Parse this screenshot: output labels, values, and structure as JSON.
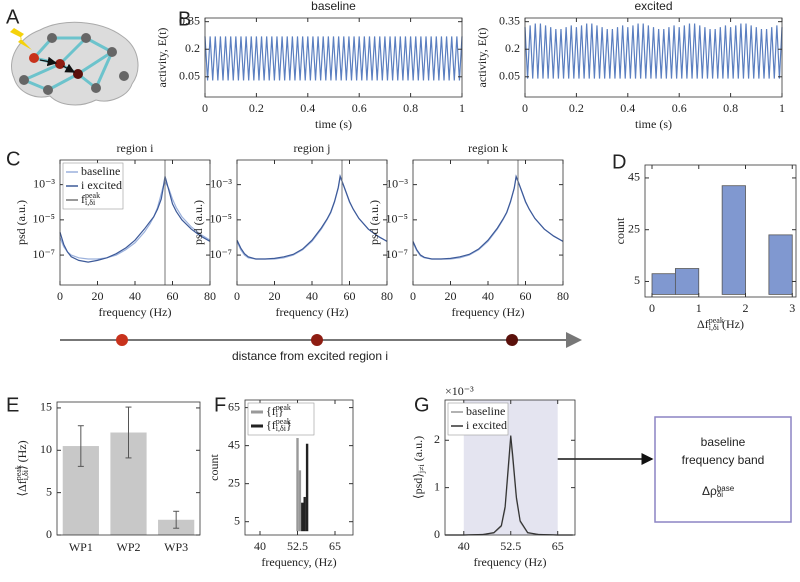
{
  "panel_labels": [
    "A",
    "B",
    "C",
    "D",
    "E",
    "F",
    "G"
  ],
  "chart_data": [
    {
      "type": "line",
      "title": "baseline",
      "xlabel": "time (s)",
      "ylabel": "activity, E(t)",
      "color": "#5b7fc0",
      "xlim": [
        0,
        1
      ],
      "ylim": [
        -0.06,
        0.37
      ],
      "xticks": [
        0,
        0.2,
        0.4,
        0.6,
        0.8,
        1
      ],
      "yticks": [
        0.05,
        0.2,
        0.35
      ],
      "x": [
        0,
        0.01,
        0.02,
        0.03,
        0.04,
        0.05,
        0.06,
        0.07,
        0.08,
        0.09,
        0.1,
        0.11,
        0.12,
        0.13,
        0.14,
        0.15,
        0.16,
        0.17,
        0.18,
        0.19,
        0.2,
        0.21,
        0.22,
        0.23,
        0.24,
        0.25,
        0.26,
        0.27,
        0.28,
        0.29,
        0.3,
        0.31,
        0.32,
        0.33,
        0.34,
        0.35,
        0.36,
        0.37,
        0.38,
        0.39,
        0.4,
        0.41,
        0.42,
        0.43,
        0.44,
        0.45,
        0.46,
        0.47,
        0.48,
        0.49,
        0.5,
        0.51,
        0.52,
        0.53,
        0.54,
        0.55,
        0.56,
        0.57,
        0.58,
        0.59,
        0.6,
        0.61,
        0.62,
        0.63,
        0.64,
        0.65,
        0.66,
        0.67,
        0.68,
        0.69,
        0.7,
        0.71,
        0.72,
        0.73,
        0.74,
        0.75,
        0.76,
        0.77,
        0.78,
        0.79,
        0.8,
        0.81,
        0.82,
        0.83,
        0.84,
        0.85,
        0.86,
        0.87,
        0.88,
        0.89,
        0.9,
        0.91,
        0.92,
        0.93,
        0.94,
        0.95,
        0.96,
        0.97,
        0.98,
        0.99,
        1
      ],
      "values": [
        0.27,
        0.03,
        0.27,
        0.03,
        0.27,
        0.03,
        0.27,
        0.03,
        0.27,
        0.03,
        0.27,
        0.03,
        0.27,
        0.03,
        0.27,
        0.03,
        0.27,
        0.03,
        0.27,
        0.03,
        0.27,
        0.03,
        0.27,
        0.03,
        0.27,
        0.03,
        0.27,
        0.03,
        0.27,
        0.03,
        0.27,
        0.03,
        0.27,
        0.03,
        0.27,
        0.03,
        0.27,
        0.03,
        0.27,
        0.03,
        0.27,
        0.03,
        0.27,
        0.03,
        0.27,
        0.03,
        0.27,
        0.03,
        0.27,
        0.03,
        0.27,
        0.03,
        0.27,
        0.03,
        0.27,
        0.03,
        0.27,
        0.03,
        0.27,
        0.03,
        0.27,
        0.03,
        0.27,
        0.03,
        0.27,
        0.03,
        0.27,
        0.03,
        0.27,
        0.03,
        0.27,
        0.03,
        0.27,
        0.03,
        0.27,
        0.03,
        0.27,
        0.03,
        0.27,
        0.03,
        0.27,
        0.03,
        0.27,
        0.03,
        0.27,
        0.03,
        0.27,
        0.03,
        0.27,
        0.03,
        0.27,
        0.03,
        0.27,
        0.03,
        0.27,
        0.03,
        0.27,
        0.03,
        0.27,
        0.03,
        0.27
      ]
    },
    {
      "type": "line",
      "title": "excited",
      "xlabel": "time (s)",
      "ylabel": "activity, E(t)",
      "color": "#5b7fc0",
      "xlim": [
        0,
        1
      ],
      "ylim": [
        -0.06,
        0.37
      ],
      "xticks": [
        0,
        0.2,
        0.4,
        0.6,
        0.8,
        1
      ],
      "yticks": [
        0.05,
        0.2,
        0.35
      ],
      "x": [
        0,
        0.01,
        0.02,
        0.03,
        0.04,
        0.05,
        0.06,
        0.07,
        0.08,
        0.09,
        0.1,
        0.11,
        0.12,
        0.13,
        0.14,
        0.15,
        0.16,
        0.17,
        0.18,
        0.19,
        0.2,
        0.21,
        0.22,
        0.23,
        0.24,
        0.25,
        0.26,
        0.27,
        0.28,
        0.29,
        0.3,
        0.31,
        0.32,
        0.33,
        0.34,
        0.35,
        0.36,
        0.37,
        0.38,
        0.39,
        0.4,
        0.41,
        0.42,
        0.43,
        0.44,
        0.45,
        0.46,
        0.47,
        0.48,
        0.49,
        0.5,
        0.51,
        0.52,
        0.53,
        0.54,
        0.55,
        0.56,
        0.57,
        0.58,
        0.59,
        0.6,
        0.61,
        0.62,
        0.63,
        0.64,
        0.65,
        0.66,
        0.67,
        0.68,
        0.69,
        0.7,
        0.71,
        0.72,
        0.73,
        0.74,
        0.75,
        0.76,
        0.77,
        0.78,
        0.79,
        0.8,
        0.81,
        0.82,
        0.83,
        0.84,
        0.85,
        0.86,
        0.87,
        0.88,
        0.89,
        0.9,
        0.91,
        0.92,
        0.93,
        0.94,
        0.95,
        0.96,
        0.97,
        0.98,
        0.99,
        1
      ],
      "values": [
        0.32,
        0.04,
        0.33,
        0.04,
        0.34,
        0.04,
        0.34,
        0.04,
        0.33,
        0.04,
        0.32,
        0.04,
        0.31,
        0.04,
        0.31,
        0.04,
        0.32,
        0.04,
        0.33,
        0.04,
        0.32,
        0.04,
        0.33,
        0.04,
        0.34,
        0.04,
        0.34,
        0.04,
        0.33,
        0.04,
        0.32,
        0.04,
        0.31,
        0.04,
        0.31,
        0.04,
        0.32,
        0.04,
        0.33,
        0.04,
        0.32,
        0.04,
        0.33,
        0.04,
        0.34,
        0.04,
        0.34,
        0.04,
        0.33,
        0.04,
        0.32,
        0.04,
        0.31,
        0.04,
        0.31,
        0.04,
        0.32,
        0.04,
        0.33,
        0.04,
        0.32,
        0.04,
        0.33,
        0.04,
        0.34,
        0.04,
        0.34,
        0.04,
        0.33,
        0.04,
        0.32,
        0.04,
        0.31,
        0.04,
        0.31,
        0.04,
        0.32,
        0.04,
        0.33,
        0.04,
        0.32,
        0.04,
        0.33,
        0.04,
        0.34,
        0.04,
        0.34,
        0.04,
        0.33,
        0.04,
        0.32,
        0.04,
        0.31,
        0.04,
        0.31,
        0.04,
        0.32,
        0.04,
        0.33,
        0.04,
        0.32
      ]
    },
    {
      "type": "line",
      "title": "region i",
      "xlabel": "frequency (Hz)",
      "ylabel": "psd (a.u.)",
      "log_y": true,
      "xlim": [
        0,
        80
      ],
      "ylim": [
        2e-09,
        0.025
      ],
      "xticks": [
        0,
        20,
        40,
        60,
        80
      ],
      "yticks": [
        {
          "value": 1e-07,
          "label": "10⁻⁷"
        },
        {
          "value": 1e-05,
          "label": "10⁻⁵"
        },
        {
          "value": 0.001,
          "label": "10⁻³"
        }
      ],
      "x": [
        0,
        2,
        4,
        6,
        10,
        15,
        20,
        25,
        30,
        35,
        40,
        45,
        48,
        50,
        52,
        54,
        55,
        56,
        58,
        60,
        62,
        65,
        70,
        75,
        80
      ],
      "series": [
        {
          "name": "baseline",
          "color": "#9ab0dc",
          "values": [
            1e-06,
            3e-07,
            1.5e-07,
            1e-07,
            7e-08,
            6e-08,
            6e-08,
            7e-08,
            1e-07,
            2e-07,
            5e-07,
            2e-06,
            6e-06,
            1.5e-05,
            5e-05,
            0.0003,
            0.0008,
            0.0015,
            0.0006,
            0.00015,
            5e-05,
            1.5e-05,
            4e-06,
            1.5e-06,
            7e-07
          ]
        },
        {
          "name": "i excited",
          "color": "#3d5a99",
          "values": [
            2e-06,
            4e-07,
            1.5e-07,
            8e-08,
            5e-08,
            4e-08,
            5e-08,
            7e-08,
            1.2e-07,
            2.5e-07,
            7e-07,
            3e-06,
            8e-06,
            1.5e-05,
            4e-05,
            0.00015,
            0.0006,
            0.003,
            0.0005,
            8e-05,
            3e-05,
            1e-05,
            3e-06,
            1.2e-06,
            6e-07
          ]
        }
      ],
      "vline": {
        "x": 56,
        "color": "#777",
        "name": {
          "parts": [
            {
              "t": "f"
            },
            {
              "t": "peak",
              "pos": "sup"
            },
            {
              "t": "i,δi",
              "pos": "sub"
            }
          ]
        }
      }
    },
    {
      "type": "line",
      "title": "region j",
      "xlabel": "frequency (Hz)",
      "ylabel": "psd (a.u.)",
      "log_y": true,
      "xlim": [
        0,
        80
      ],
      "ylim": [
        2e-09,
        0.025
      ],
      "xticks": [
        0,
        20,
        40,
        60,
        80
      ],
      "yticks": [
        {
          "value": 1e-07,
          "label": "10⁻⁷"
        },
        {
          "value": 1e-05,
          "label": "10⁻⁵"
        },
        {
          "value": 0.001,
          "label": "10⁻³"
        }
      ],
      "x": [
        0,
        2,
        4,
        6,
        10,
        15,
        20,
        25,
        30,
        35,
        40,
        45,
        48,
        50,
        52,
        54,
        55,
        56,
        58,
        60,
        62,
        65,
        70,
        75,
        80
      ],
      "series": [
        {
          "color": "#9ab0dc",
          "values": [
            6e-07,
            2e-07,
            1e-07,
            7e-08,
            6e-08,
            6e-08,
            6e-08,
            7e-08,
            1e-07,
            2e-07,
            6e-07,
            3e-06,
            1e-05,
            2.5e-05,
            0.0001,
            0.0006,
            0.0025,
            0.0015,
            0.0004,
            0.0001,
            4e-05,
            1.2e-05,
            3e-06,
            1.2e-06,
            6e-07
          ]
        },
        {
          "color": "#3d5a99",
          "values": [
            7e-07,
            2.5e-07,
            1.2e-07,
            8e-08,
            6e-08,
            6e-08,
            6.5e-08,
            8e-08,
            1.1e-07,
            2.2e-07,
            7e-07,
            3.5e-06,
            1.1e-05,
            2.8e-05,
            0.00011,
            0.0007,
            0.003,
            0.0016,
            0.00042,
            0.00011,
            4e-05,
            1.2e-05,
            3e-06,
            1.2e-06,
            6e-07
          ]
        }
      ],
      "vline": {
        "x": 56,
        "color": "#777"
      }
    },
    {
      "type": "line",
      "title": "region k",
      "xlabel": "frequency (Hz)",
      "ylabel": "psd (a.u.)",
      "log_y": true,
      "xlim": [
        0,
        80
      ],
      "ylim": [
        2e-09,
        0.025
      ],
      "xticks": [
        0,
        20,
        40,
        60,
        80
      ],
      "yticks": [
        {
          "value": 1e-07,
          "label": "10⁻⁷"
        },
        {
          "value": 1e-05,
          "label": "10⁻⁵"
        },
        {
          "value": 0.001,
          "label": "10⁻³"
        }
      ],
      "x": [
        0,
        2,
        4,
        6,
        10,
        15,
        20,
        25,
        30,
        35,
        40,
        45,
        48,
        50,
        52,
        54,
        55,
        56,
        58,
        60,
        62,
        65,
        70,
        75,
        80
      ],
      "series": [
        {
          "color": "#9ab0dc",
          "values": [
            5e-07,
            1.8e-07,
            9e-08,
            7e-08,
            6e-08,
            6e-08,
            6e-08,
            7e-08,
            1e-07,
            2e-07,
            6e-07,
            3e-06,
            1e-05,
            2.5e-05,
            0.0001,
            0.0006,
            0.0026,
            0.0015,
            0.0004,
            0.0001,
            4e-05,
            1.2e-05,
            3e-06,
            1.2e-06,
            6e-07
          ]
        },
        {
          "color": "#3d5a99",
          "values": [
            6e-07,
            2e-07,
            1e-07,
            7.5e-08,
            6e-08,
            6e-08,
            6.5e-08,
            8e-08,
            1.1e-07,
            2.2e-07,
            7e-07,
            3.4e-06,
            1.1e-05,
            2.7e-05,
            0.00011,
            0.00065,
            0.0029,
            0.0016,
            0.00042,
            0.00011,
            4e-05,
            1.2e-05,
            3e-06,
            1.2e-06,
            6e-07
          ]
        }
      ],
      "vline": {
        "x": 56,
        "color": "#777"
      }
    },
    {
      "type": "histogram",
      "ylabel": "count",
      "xlabel": {
        "parts": [
          {
            "t": "Δf"
          },
          {
            "t": "peak",
            "pos": "sup"
          },
          {
            "t": "i,δi",
            "pos": "sub"
          },
          {
            "t": "  (Hz)"
          }
        ]
      },
      "bins": [
        0,
        0.5,
        1,
        1.5,
        2,
        2.5,
        3
      ],
      "values": [
        8,
        10,
        0,
        42,
        0,
        23
      ],
      "color": "#8098d0",
      "xlim": [
        -0.15,
        3.08
      ],
      "ylim": [
        -1,
        50
      ],
      "xticks": [
        0,
        1,
        2,
        3
      ],
      "yticks": [
        5,
        25,
        45
      ]
    },
    {
      "type": "bar",
      "ylabel": {
        "parts": [
          {
            "t": "⟨Δf"
          },
          {
            "t": "peak",
            "pos": "sup"
          },
          {
            "t": "i,δi",
            "pos": "sub"
          },
          {
            "t": "⟩ (Hz)"
          }
        ]
      },
      "categories": [
        "WP1",
        "WP2",
        "WP3"
      ],
      "values": [
        10.5,
        12.1,
        1.8
      ],
      "errors": [
        2.4,
        3,
        1
      ],
      "color": "#c8c8c8",
      "ylim": [
        0,
        15.7
      ],
      "yticks": [
        0,
        5,
        10,
        15
      ]
    },
    {
      "type": "bar",
      "ylabel": "count",
      "xlabel": "frequency, (Hz)",
      "xlim": [
        35,
        71
      ],
      "ylim": [
        -2,
        69
      ],
      "xticks": [
        40,
        52.5,
        65
      ],
      "yticks": [
        5,
        25,
        45,
        65
      ],
      "series": [
        {
          "name": {
            "parts": [
              {
                "t": "{f"
              },
              {
                "t": "peak",
                "pos": "sup"
              },
              {
                "t": "i",
                "pos": "sub"
              },
              {
                "t": "}"
              }
            ]
          },
          "color": "#999999",
          "x": [
            52.5,
            53.3
          ],
          "values": [
            49,
            32
          ]
        },
        {
          "name": {
            "parts": [
              {
                "t": "{f"
              },
              {
                "t": "peak",
                "pos": "sup"
              },
              {
                "t": "i,δi",
                "pos": "sub"
              },
              {
                "t": "}"
              }
            ]
          },
          "color": "#222222",
          "x": [
            54.1,
            54.9,
            55.7
          ],
          "values": [
            15,
            18,
            46
          ]
        }
      ]
    },
    {
      "type": "line",
      "xlabel": "frequency (Hz)",
      "ylabel": {
        "parts": [
          {
            "t": "⟨psd⟩"
          },
          {
            "t": "j≠i",
            "pos": "sub"
          },
          {
            "t": " (a.u.)"
          }
        ]
      },
      "scale_label": "×10⁻³",
      "band": [
        40,
        65
      ],
      "band_color": "#e4e4f0",
      "xlim": [
        35,
        69.6
      ],
      "ylim": [
        0,
        2.85
      ],
      "xticks": [
        40,
        52.5,
        65
      ],
      "yticks": [
        0,
        1,
        2
      ],
      "x": [
        35,
        40,
        45,
        48,
        50,
        51,
        52,
        52.5,
        53,
        54,
        55,
        57,
        60,
        65,
        69
      ],
      "series": [
        {
          "name": "baseline",
          "color": "#999999",
          "values": [
            0,
            0,
            0.01,
            0.04,
            0.18,
            0.55,
            1.5,
            2.0,
            1.6,
            0.75,
            0.28,
            0.04,
            0.01,
            0,
            0
          ]
        },
        {
          "name": "i excited",
          "color": "#333333",
          "values": [
            0,
            0,
            0.01,
            0.05,
            0.2,
            0.6,
            1.6,
            2.1,
            1.7,
            0.8,
            0.3,
            0.05,
            0.01,
            0,
            0
          ]
        }
      ]
    }
  ],
  "distance": {
    "label": "distance from excited region i",
    "dots": [
      "#c8321c",
      "#8e1d12",
      "#5a100b"
    ]
  },
  "band_box": {
    "line1": "baseline",
    "line2": "frequency band",
    "symbol": {
      "parts": [
        {
          "t": "Δρ"
        },
        {
          "t": "base",
          "pos": "sup"
        },
        {
          "t": "δi",
          "pos": "sub"
        }
      ]
    },
    "color": "#8c84c4"
  }
}
